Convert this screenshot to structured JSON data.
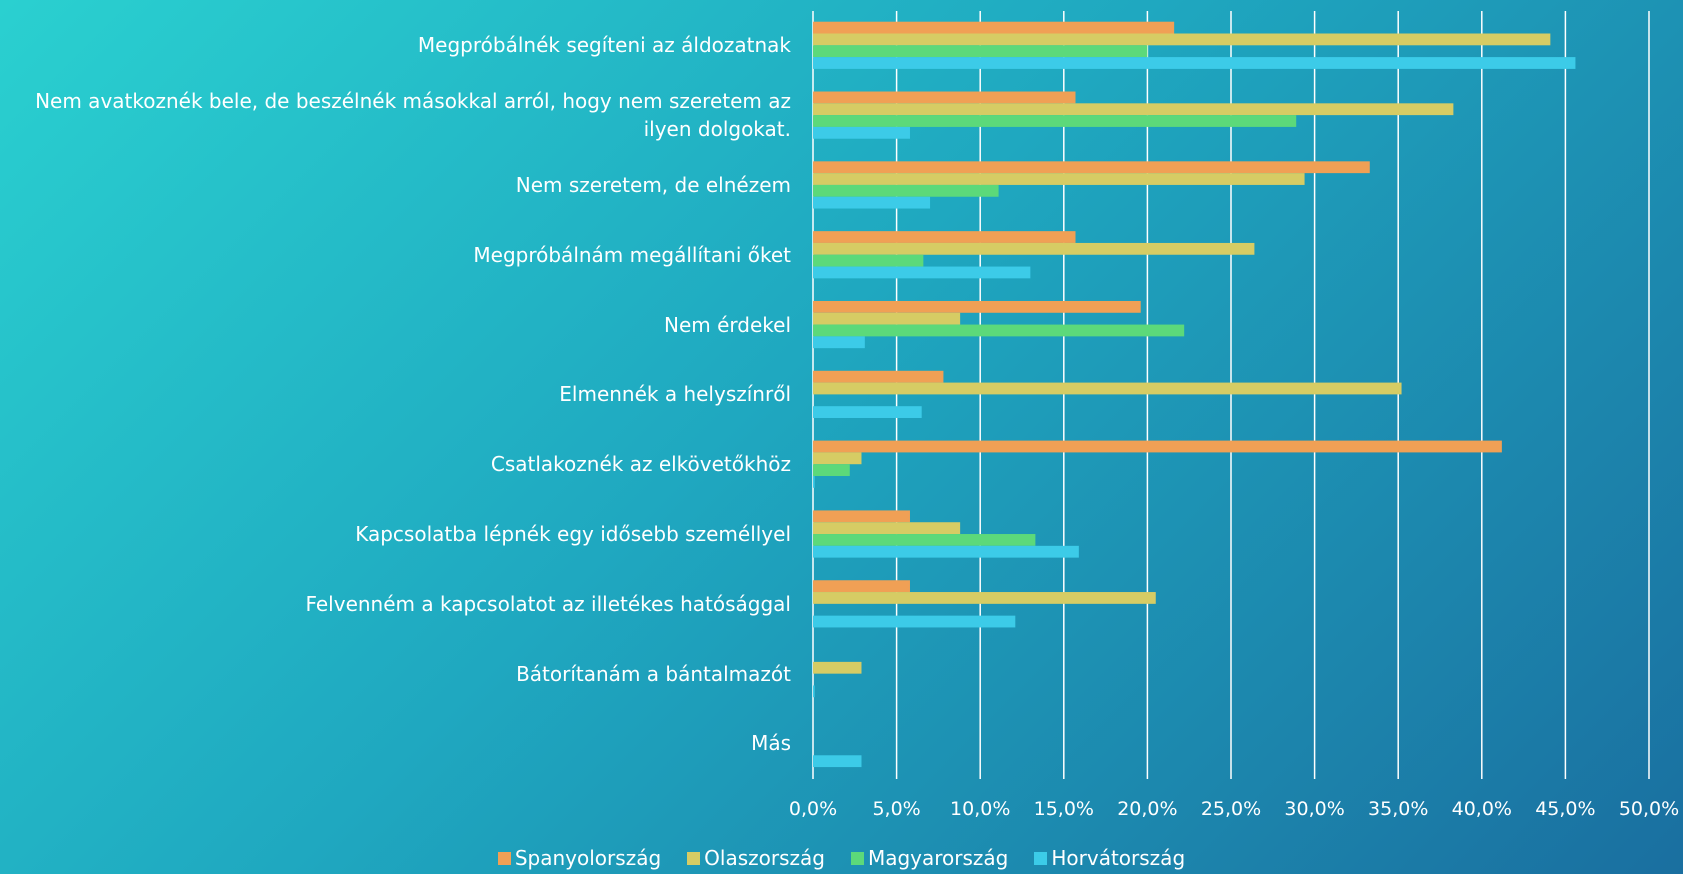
{
  "chart_data": {
    "type": "bar",
    "orientation": "horizontal",
    "categories": [
      "Megpróbálnék segíteni az áldozatnak",
      "Nem avatkoznék bele, de beszélnék másokkal arról, hogy nem szeretem az ilyen dolgokat.",
      "Nem szeretem, de elnézem",
      "Megpróbálnám megállítani őket",
      "Nem érdekel",
      "Elmennék a helyszínről",
      "Csatlakoznék az elkövetőkhöz",
      "Kapcsolatba lépnék egy idősebb személlyel",
      "Felvenném a kapcsolatot az illetékes hatósággal",
      "Bátorítanám a bántalmazót",
      "Más"
    ],
    "series": [
      {
        "name": "Spanyolország",
        "color": "#f0a055",
        "values": [
          21.6,
          15.7,
          33.3,
          15.7,
          19.6,
          7.8,
          41.2,
          5.8,
          5.8,
          0,
          0
        ]
      },
      {
        "name": "Olaszország",
        "color": "#d6cc64",
        "values": [
          44.1,
          38.3,
          29.4,
          26.4,
          8.8,
          35.2,
          2.9,
          8.8,
          20.5,
          2.9,
          0
        ]
      },
      {
        "name": "Magyarország",
        "color": "#5cd97a",
        "values": [
          20.0,
          28.9,
          11.1,
          6.6,
          22.2,
          0,
          2.2,
          13.3,
          0,
          0,
          0
        ]
      },
      {
        "name": "Horvátország",
        "color": "#3ccbe8",
        "values": [
          45.6,
          5.8,
          7.0,
          13.0,
          3.1,
          6.5,
          0.1,
          15.9,
          12.1,
          0.1,
          2.9
        ]
      }
    ],
    "xlim": [
      0,
      50
    ],
    "xticks": [
      {
        "value": 0,
        "label": "0,0%"
      },
      {
        "value": 5,
        "label": "5,0%"
      },
      {
        "value": 10,
        "label": "10,0%"
      },
      {
        "value": 15,
        "label": "15,0%"
      },
      {
        "value": 20,
        "label": "20,0%"
      },
      {
        "value": 25,
        "label": "25,0%"
      },
      {
        "value": 30,
        "label": "30,0%"
      },
      {
        "value": 35,
        "label": "35,0%"
      },
      {
        "value": 40,
        "label": "40,0%"
      },
      {
        "value": 45,
        "label": "45,0%"
      },
      {
        "value": 50,
        "label": "50,0%"
      }
    ],
    "grid": true,
    "legend": "bottom"
  }
}
